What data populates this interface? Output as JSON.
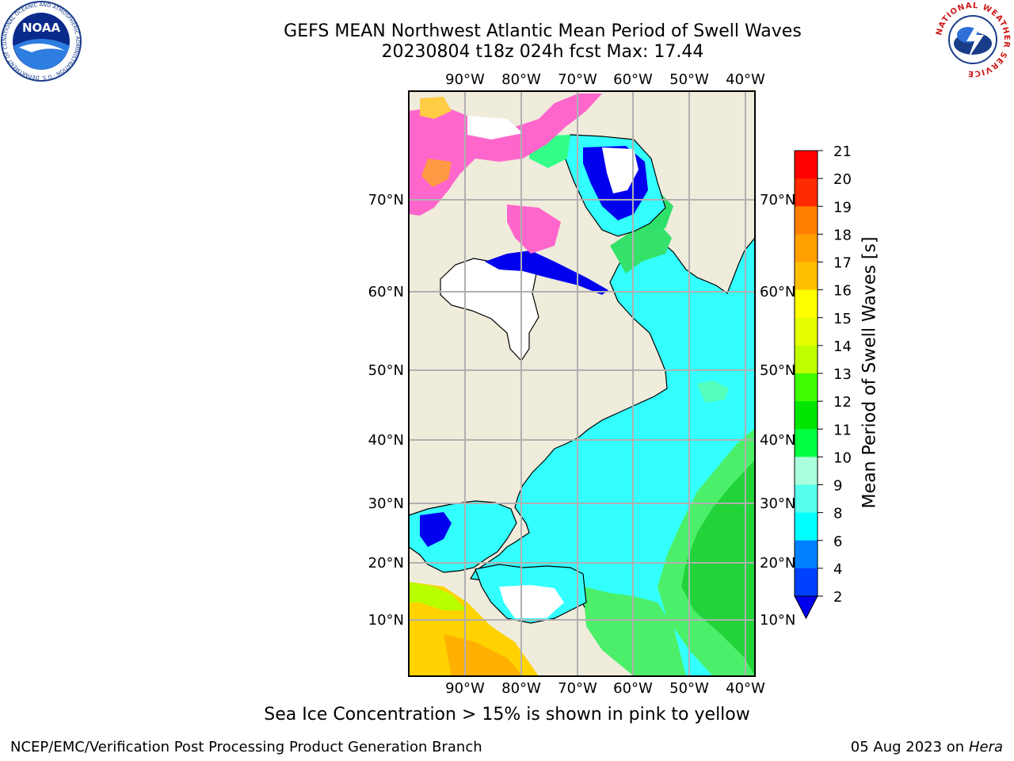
{
  "header": {
    "title_line1": "GEFS MEAN Northwest Atlantic Mean Period of Swell Waves",
    "title_line2": "20230804 t18z 024h fcst   Max: 17.44"
  },
  "logos": {
    "noaa_text": "NOAA",
    "noaa_ring_text": "NATIONAL OCEANIC AND ATMOSPHERIC ADMINISTRATION · U.S. DEPARTMENT OF COMMERCE",
    "nws_ring_text": "NATIONAL WEATHER SERVICE"
  },
  "map": {
    "lon_labels": [
      "90°W",
      "80°W",
      "70°W",
      "60°W",
      "50°W",
      "40°W"
    ],
    "lat_labels": [
      "70°N",
      "60°N",
      "50°N",
      "40°N",
      "30°N",
      "20°N",
      "10°N"
    ],
    "land_color": "#efecdc",
    "grid_color": "#b0b0b0"
  },
  "colorbar": {
    "title": "Mean Period of Swell Waves [s]",
    "ticks": [
      "21",
      "20",
      "19",
      "18",
      "17",
      "16",
      "15",
      "14",
      "13",
      "12",
      "11",
      "10",
      "9",
      "8",
      "6",
      "4",
      "2"
    ],
    "colors": [
      "#ff0000",
      "#ff2a00",
      "#ff5500",
      "#ff7f00",
      "#ff9f00",
      "#ffbf00",
      "#ffdf00",
      "#ffff00",
      "#e6ff00",
      "#bfff00",
      "#80ff00",
      "#40ff00",
      "#00e600",
      "#00ff40",
      "#55ff88",
      "#aaffdd",
      "#55ffee",
      "#00ffff",
      "#00ddff",
      "#0080ff",
      "#0040ff",
      "#0000ee"
    ]
  },
  "footer": {
    "note": "Sea Ice Concentration > 15% is shown in pink to yellow",
    "left": "NCEP/EMC/Verification Post Processing Product Generation Branch",
    "right_date": "05 Aug 2023 on",
    "right_host": "Hera"
  }
}
